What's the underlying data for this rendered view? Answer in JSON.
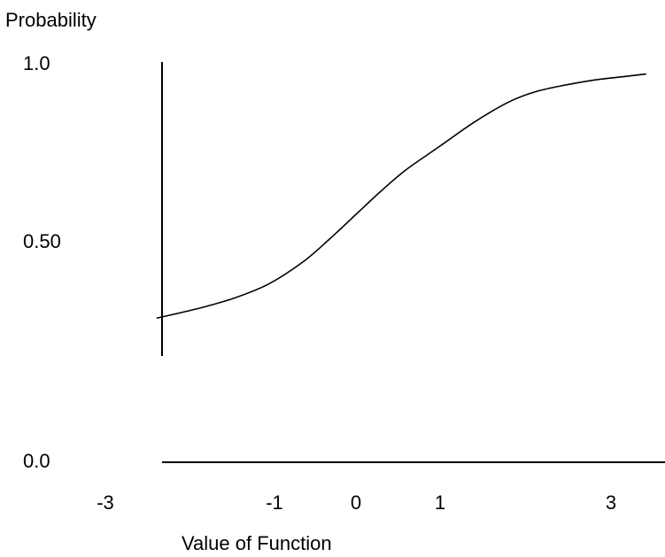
{
  "chart_data": {
    "type": "line",
    "title": "",
    "xlabel": "Value of Function",
    "ylabel": "Probability",
    "xlim": [
      -3,
      3.5
    ],
    "ylim": [
      0.0,
      1.0
    ],
    "x_ticks": [
      {
        "value": -3,
        "label": "-3"
      },
      {
        "value": -1,
        "label": "-1"
      },
      {
        "value": 0,
        "label": "0"
      },
      {
        "value": 1,
        "label": "1"
      },
      {
        "value": 3,
        "label": "3"
      }
    ],
    "y_ticks": [
      {
        "value": 1.0,
        "label": "1.0"
      },
      {
        "value": 0.5,
        "label": "0.50"
      },
      {
        "value": 0.0,
        "label": "0.0"
      }
    ],
    "grid": false,
    "series": [
      {
        "x": [
          -2.3,
          -1.8,
          -1.4,
          -1.0,
          -0.6,
          -0.3,
          0.0,
          0.3,
          0.6,
          1.0,
          1.4,
          1.8,
          2.1,
          2.4,
          2.8,
          3.2,
          3.4
        ],
        "y": [
          0.36,
          0.385,
          0.41,
          0.445,
          0.5,
          0.555,
          0.615,
          0.675,
          0.73,
          0.79,
          0.85,
          0.9,
          0.925,
          0.94,
          0.955,
          0.965,
          0.97
        ]
      }
    ]
  }
}
